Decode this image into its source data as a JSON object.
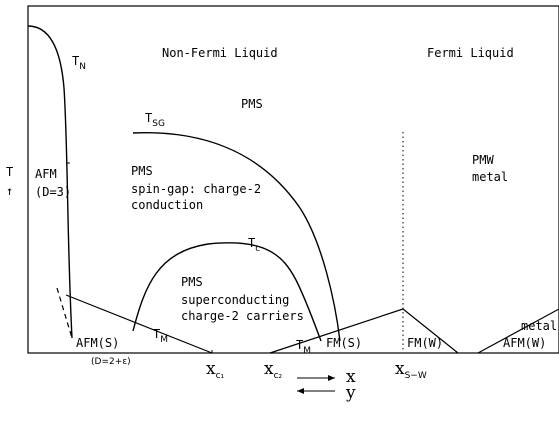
{
  "diagram": {
    "regions": {
      "non_fermi_liquid": "Non-Fermi Liquid",
      "fermi_liquid": "Fermi Liquid",
      "pms_top": "PMS",
      "pms_spin_gap": "PMS",
      "spin_gap_line1": "spin-gap: charge-2",
      "spin_gap_line2": "conduction",
      "pms_sc": "PMS",
      "sc_line1": "superconducting",
      "sc_line2": "charge-2 carriers",
      "pmw": "PMW",
      "pmw_metal": "metal",
      "afm": "AFM",
      "afm_dim": "(D=3)",
      "afm_s": "AFM(S)",
      "afm_s_dim": "(D=2+ε)",
      "fm_s": "FM(S)",
      "fm_w": "FM(W)",
      "afm_w": "AFM(W)",
      "metal_right": "metal"
    },
    "temperatures": {
      "tn_main": "T",
      "tn_sub": "N",
      "tsg_main": "T",
      "tsg_sub": "SG",
      "tc_main": "T",
      "tc_sub": "c",
      "tm_left_main": "T",
      "tm_left_sub": "M",
      "tm_right_main": "T",
      "tm_right_sub": "M"
    },
    "axis": {
      "t_label": "T",
      "t_arrow": "↑",
      "xc1_main": "x",
      "xc1_sub": "c₁",
      "xc2_main": "x",
      "xc2_sub": "c₂",
      "xsw_main": "x",
      "xsw_sub": "S−W",
      "x_label": "x",
      "y_label": "y"
    }
  }
}
